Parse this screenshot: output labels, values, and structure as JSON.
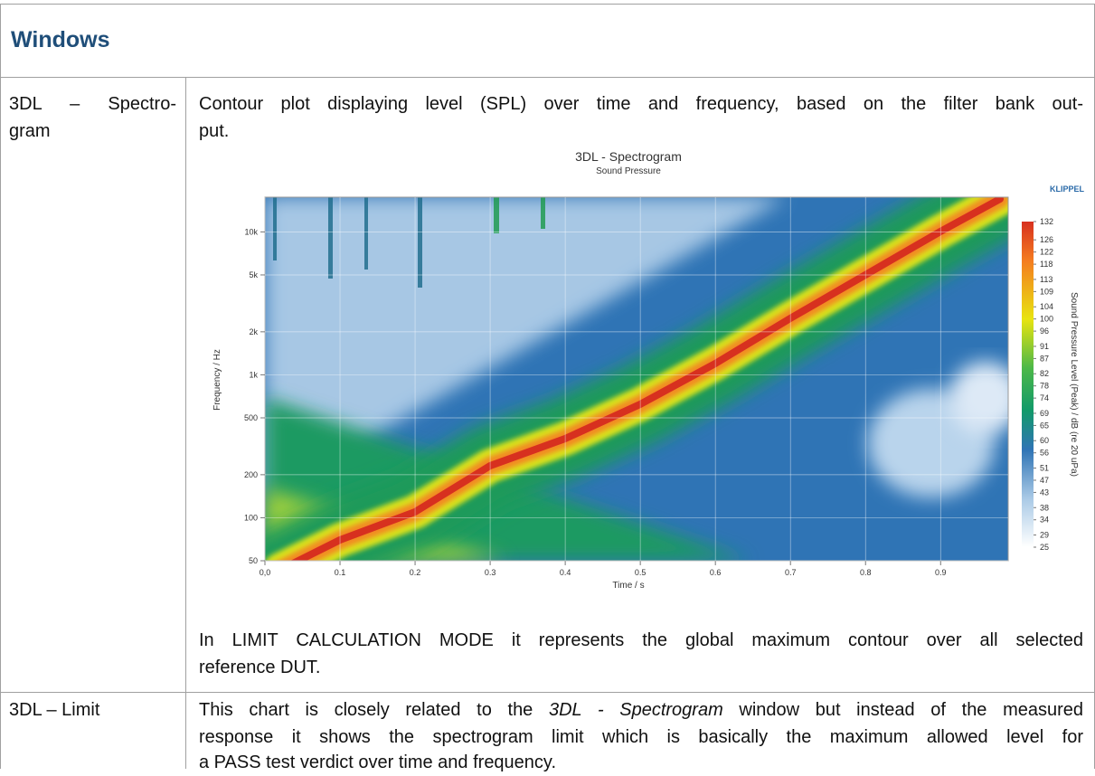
{
  "document": {
    "header": {
      "title": "Windows"
    },
    "rows": [
      {
        "label_lines": [
          "3DL – Spectro-",
          "gram"
        ],
        "text_lines": [
          "Contour plot displaying level (SPL) over time and frequency, based on the filter bank out-",
          "put."
        ],
        "note_lines": [
          "In LIMIT CALCULATION MODE it represents the global maximum contour over all selected",
          "reference DUT."
        ]
      },
      {
        "label": "3DL – Limit",
        "text": {
          "before": "This chart is closely related to the",
          "emphasis": "3DL - Spectrogram",
          "after": "window but instead of the measured",
          "lines": [
            "response it shows the spectrogram limit which is basically the maximum allowed level for",
            "a PASS test verdict over time and frequency."
          ]
        }
      }
    ]
  },
  "chart_data": {
    "type": "heatmap",
    "title": "3DL - Spectrogram",
    "subtitle": "Sound Pressure",
    "brand": "KLIPPEL",
    "x_label": "Time / s",
    "y_label": "Frequency / Hz",
    "colorbar_label": "Sound Pressure Level (Peak) / dB (re 20 uPa)",
    "xlim": [
      0,
      0.99
    ],
    "xticks": [
      {
        "value": 0,
        "label": "0,0"
      },
      0.1,
      0.2,
      0.3,
      0.4,
      0.5,
      0.6,
      0.7,
      0.8,
      0.9
    ],
    "ylim": [
      50,
      17500
    ],
    "y_log": true,
    "yticks": [
      50,
      100,
      200,
      500,
      {
        "value": 1000,
        "label": "1k"
      },
      {
        "value": 2000,
        "label": "2k"
      },
      {
        "value": 5000,
        "label": "5k"
      },
      {
        "value": 10000,
        "label": "10k"
      }
    ],
    "grid": true,
    "colorbar_lim": [
      25,
      132
    ],
    "colorbar_ticks": [
      132,
      126,
      122,
      118,
      113,
      109,
      104,
      100,
      96,
      91,
      87,
      82,
      78,
      74,
      69,
      65,
      60,
      56,
      51,
      47,
      43,
      38,
      34,
      29,
      25
    ]
  }
}
